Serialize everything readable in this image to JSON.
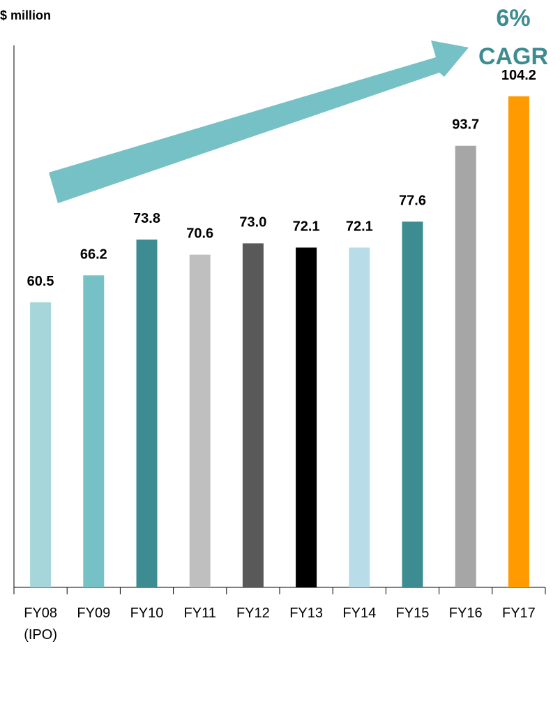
{
  "chart_data": {
    "type": "bar",
    "ylabel": "$ million",
    "categories": [
      [
        "FY08",
        "(IPO)"
      ],
      [
        "FY09"
      ],
      [
        "FY10"
      ],
      [
        "FY11"
      ],
      [
        "FY12"
      ],
      [
        "FY13"
      ],
      [
        "FY14"
      ],
      [
        "FY15"
      ],
      [
        "FY16"
      ],
      [
        "FY17"
      ]
    ],
    "values": [
      60.5,
      66.2,
      73.8,
      70.6,
      73.0,
      72.1,
      72.1,
      77.6,
      93.7,
      104.2
    ],
    "value_labels": [
      "60.5",
      "66.2",
      "73.8",
      "70.6",
      "73.0",
      "72.1",
      "72.1",
      "77.6",
      "93.7",
      "104.2"
    ],
    "bar_colors": [
      "#a6d6da",
      "#75c1c6",
      "#3d8c92",
      "#bfbfbf",
      "#595959",
      "#000000",
      "#b8dde8",
      "#3d8c92",
      "#a6a6a6",
      "#ff9a00"
    ],
    "ylim": [
      0,
      115
    ],
    "grid": false,
    "legend": "none",
    "annotation": {
      "lines": [
        "6%",
        "CAGR"
      ],
      "color": "#3d8c92",
      "arrow_color": "#75c1c6",
      "arrow_direction": "up-right"
    }
  }
}
